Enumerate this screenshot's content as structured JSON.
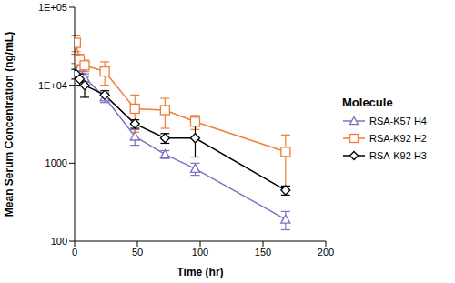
{
  "chart_data": {
    "type": "line",
    "xlabel": "Time (hr)",
    "ylabel": "Mean Serum Concentration (ng/mL)",
    "log": "y",
    "grid": false,
    "legend": "right",
    "legend_title": "Molecule",
    "xlim": [
      0,
      200
    ],
    "xticks": [
      0,
      50,
      100,
      150,
      200
    ],
    "ylim": [
      100,
      100000
    ],
    "yticks": [
      100,
      1000,
      {
        "value": 10000,
        "label": "1E+04"
      },
      {
        "value": 100000,
        "label": "1E+05"
      }
    ],
    "series": [
      {
        "name": "RSA-K57 H4",
        "color": "#7b72c0",
        "marker": "triangle",
        "x": [
          1,
          4,
          8,
          24,
          48,
          72,
          96,
          168
        ],
        "values": [
          22000,
          17000,
          12500,
          7000,
          2200,
          1300,
          850,
          190
        ],
        "errors": [
          3000,
          2000,
          1500,
          1000,
          500,
          150,
          150,
          50
        ]
      },
      {
        "name": "RSA-K92 H2",
        "color": "#f07c3a",
        "marker": "square",
        "x": [
          1,
          4,
          8,
          24,
          48,
          72,
          96,
          168
        ],
        "values": [
          35000,
          21000,
          18000,
          15000,
          5000,
          4800,
          3400,
          1400
        ],
        "errors": [
          8000,
          4000,
          3000,
          5000,
          2500,
          2000,
          700,
          900
        ]
      },
      {
        "name": "RSA-K92 H3",
        "color": "#000000",
        "marker": "diamond",
        "x": [
          1,
          4,
          8,
          24,
          48,
          72,
          96,
          168
        ],
        "values": [
          14000,
          12000,
          10000,
          7500,
          3200,
          2100,
          2100,
          450
        ],
        "errors": [
          2000,
          2000,
          3000,
          1000,
          400,
          300,
          900,
          60
        ]
      }
    ]
  }
}
